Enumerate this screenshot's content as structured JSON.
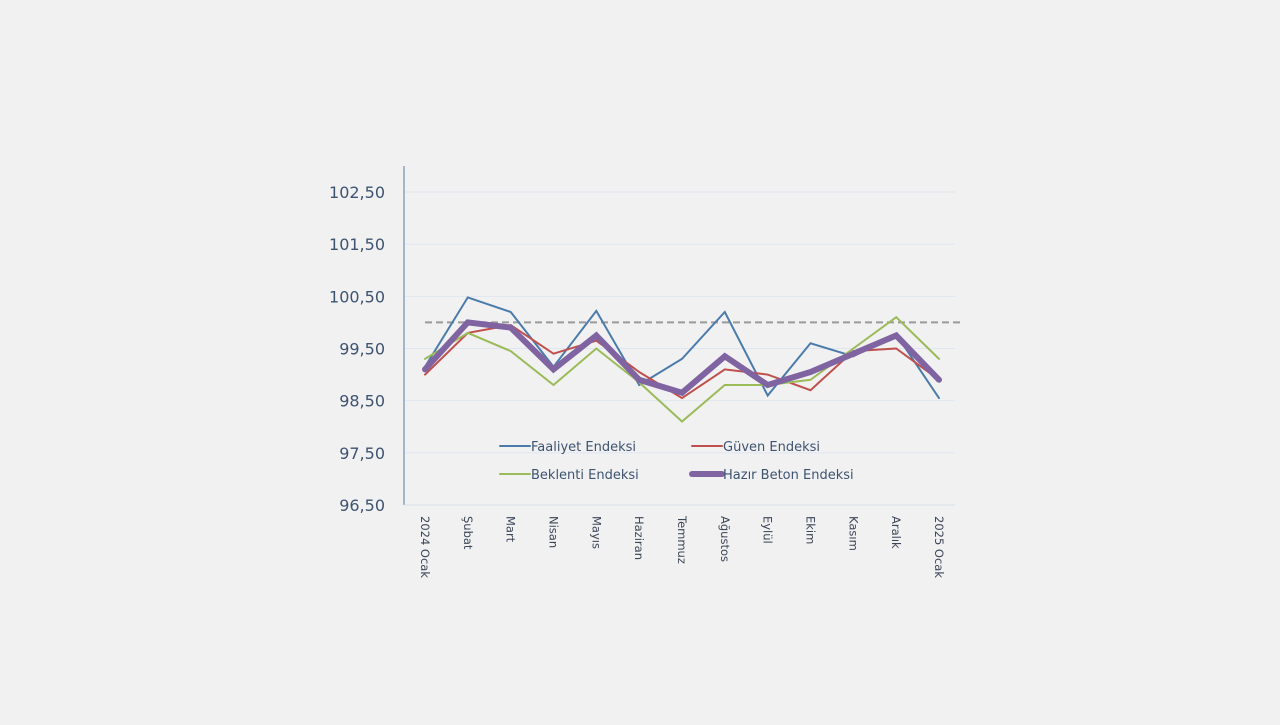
{
  "chart_data": {
    "type": "line",
    "title": "",
    "xlabel": "",
    "ylabel": "",
    "ylim": [
      96.5,
      102.5
    ],
    "yticks": [
      "102,50",
      "101,50",
      "100,50",
      "99,50",
      "98,50",
      "97,50",
      "96,50"
    ],
    "ytick_values": [
      102.5,
      101.5,
      100.5,
      99.5,
      98.5,
      97.5,
      96.5
    ],
    "grid": true,
    "reference_line": {
      "value": 100.0,
      "style": "dashed",
      "color": "#9a9a9a"
    },
    "legend_position": "inside-bottom-center",
    "categories": [
      "2024 Ocak",
      "Şubat",
      "Mart",
      "Nisan",
      "Mayıs",
      "Haziran",
      "Temmuz",
      "Ağustos",
      "Eylül",
      "Ekim",
      "Kasım",
      "Aralık",
      "2025 Ocak"
    ],
    "series": [
      {
        "name": "Faaliyet Endeksi",
        "color": "#4a7bab",
        "width": 2,
        "values": [
          99.15,
          100.48,
          100.2,
          99.15,
          100.22,
          98.8,
          99.3,
          100.2,
          98.6,
          99.6,
          99.35,
          99.77,
          98.55
        ]
      },
      {
        "name": "Güven Endeksi",
        "color": "#c0504d",
        "width": 2,
        "values": [
          99.0,
          99.8,
          99.95,
          99.4,
          99.65,
          99.05,
          98.55,
          99.1,
          99.0,
          98.7,
          99.45,
          99.5,
          98.9
        ]
      },
      {
        "name": "Beklenti Endeksi",
        "color": "#9bbb59",
        "width": 2,
        "values": [
          99.3,
          99.8,
          99.45,
          98.8,
          99.5,
          98.85,
          98.1,
          98.8,
          98.8,
          98.9,
          99.5,
          100.1,
          99.3
        ]
      },
      {
        "name": "Hazır Beton Endeksi",
        "color": "#8064a2",
        "width": 6,
        "values": [
          99.1,
          100.0,
          99.9,
          99.1,
          99.75,
          98.9,
          98.65,
          99.35,
          98.8,
          99.05,
          99.4,
          99.75,
          98.9
        ]
      }
    ]
  },
  "colors": {
    "background": "#f1f1f2",
    "axis": "#8da2bb",
    "gridline": "#dfe6ef",
    "tick_text_y": "#3d5370",
    "tick_text_x": "#3b4656"
  }
}
